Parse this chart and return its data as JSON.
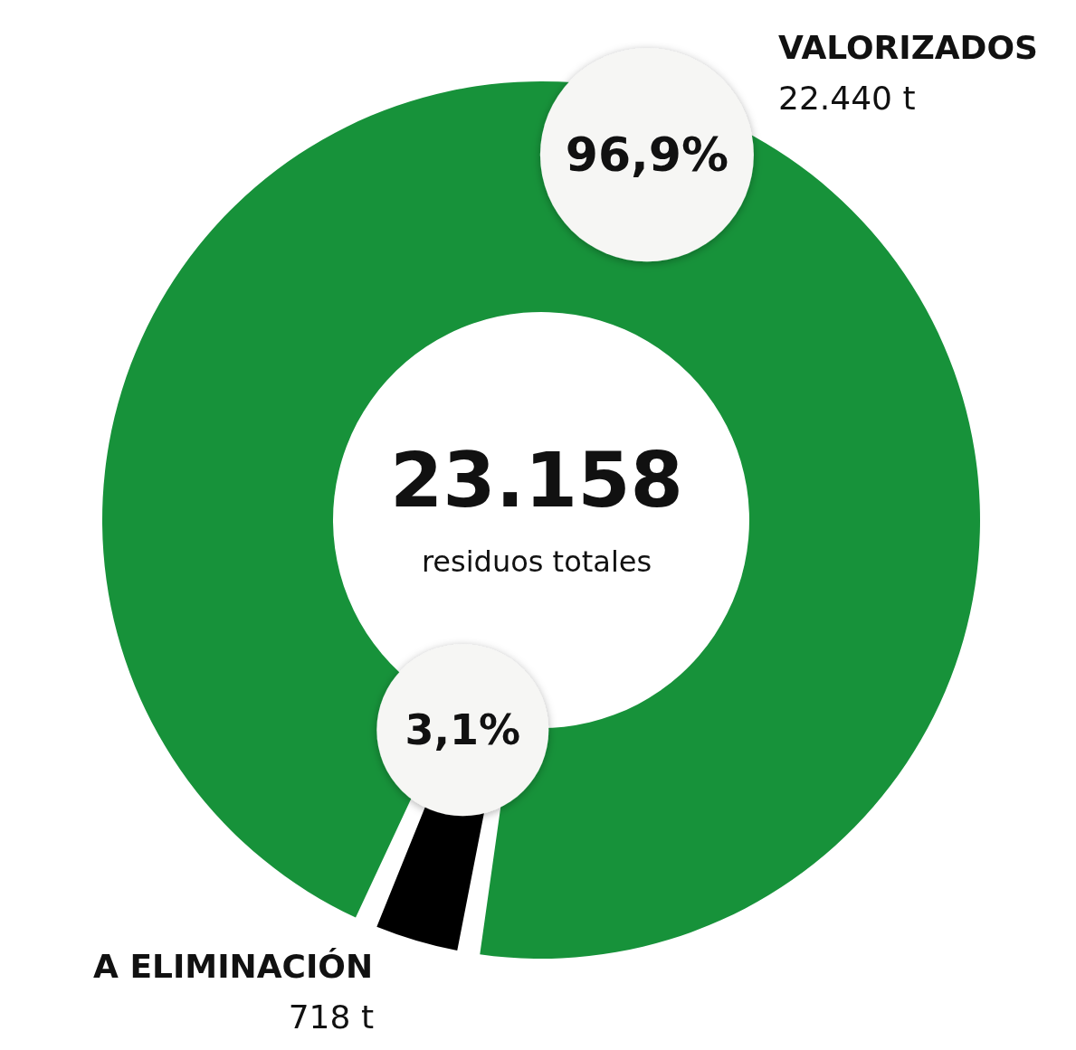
{
  "chart_data": {
    "type": "donut",
    "categories": [
      "VALORIZADOS",
      "A ELIMINACIÓN"
    ],
    "values": [
      96.9,
      3.1
    ],
    "colors": [
      "#17923a",
      "#000000"
    ],
    "value_labels": [
      "96,9%",
      "3,1%"
    ],
    "annotations": [
      "23.158",
      "residuos totales",
      "22.440 t",
      "718 t"
    ]
  }
}
